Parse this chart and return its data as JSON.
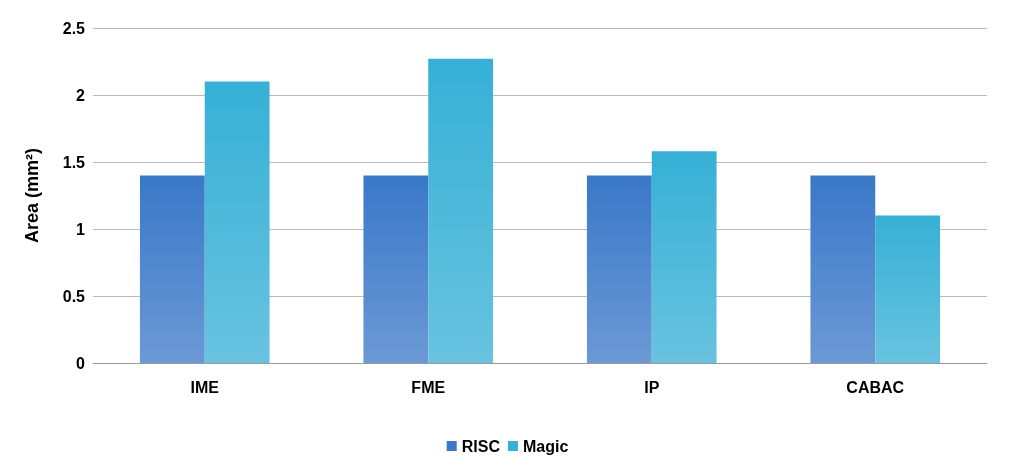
{
  "chart_data": {
    "type": "bar",
    "ylabel": "Area (mm²)",
    "categories": [
      "IME",
      "FME",
      "IP",
      "CABAC"
    ],
    "series": [
      {
        "name": "RISC",
        "color": "#3a78c8",
        "values": [
          1.4,
          1.4,
          1.4,
          1.4
        ]
      },
      {
        "name": "Magic",
        "color": "#36b0d6",
        "values": [
          2.1,
          2.27,
          1.58,
          1.1
        ]
      }
    ],
    "ylim": [
      0,
      2.5
    ],
    "yticks": [
      0,
      0.5,
      1,
      1.5,
      2,
      2.5
    ],
    "grid": "y",
    "legend": "bottom"
  }
}
